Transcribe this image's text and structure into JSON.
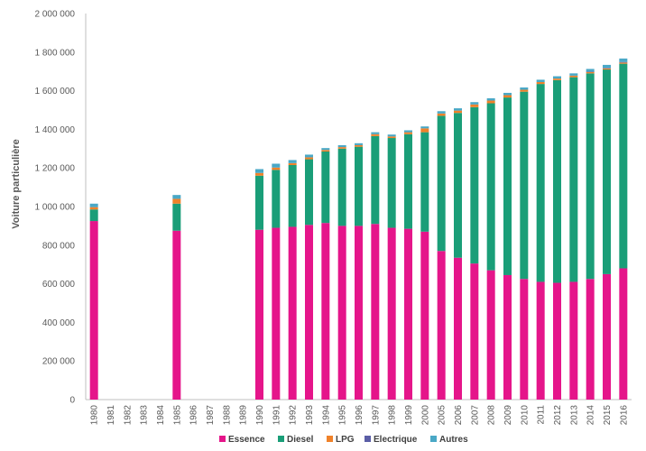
{
  "chart_data": {
    "type": "bar",
    "stacked": true,
    "ylabel": "Voiture particulière",
    "xlabel": "",
    "ylim": [
      0,
      2000000
    ],
    "y_ticks": [
      "0",
      "200 000",
      "400 000",
      "600 000",
      "800 000",
      "1 000 000",
      "1 200 000",
      "1 400 000",
      "1 600 000",
      "1 800 000",
      "2 000 000"
    ],
    "y_tick_values": [
      0,
      200000,
      400000,
      600000,
      800000,
      1000000,
      1200000,
      1400000,
      1600000,
      1800000,
      2000000
    ],
    "grid": false,
    "legend_position": "bottom",
    "categories": [
      "1980",
      "1981",
      "1982",
      "1983",
      "1984",
      "1985",
      "1986",
      "1987",
      "1988",
      "1989",
      "1990",
      "1991",
      "1992",
      "1993",
      "1994",
      "1995",
      "1996",
      "1997",
      "1998",
      "1999",
      "2000",
      "2005",
      "2006",
      "2007",
      "2008",
      "2009",
      "2010",
      "2011",
      "2012",
      "2013",
      "2014",
      "2015",
      "2016"
    ],
    "series": [
      {
        "name": "Essence",
        "color": "#e5158a",
        "values": [
          925000,
          null,
          null,
          null,
          null,
          875000,
          null,
          null,
          null,
          null,
          880000,
          890000,
          895000,
          905000,
          915000,
          900000,
          900000,
          910000,
          890000,
          885000,
          870000,
          770000,
          735000,
          705000,
          670000,
          645000,
          625000,
          610000,
          605000,
          610000,
          625000,
          650000,
          680000
        ]
      },
      {
        "name": "Diesel",
        "color": "#1a9e78",
        "values": [
          60000,
          null,
          null,
          null,
          null,
          140000,
          null,
          null,
          null,
          null,
          280000,
          300000,
          320000,
          340000,
          370000,
          400000,
          410000,
          455000,
          465000,
          490000,
          515000,
          700000,
          750000,
          810000,
          865000,
          920000,
          970000,
          1025000,
          1050000,
          1060000,
          1065000,
          1060000,
          1060000
        ]
      },
      {
        "name": "LPG",
        "color": "#f0822a",
        "values": [
          12000,
          null,
          null,
          null,
          null,
          25000,
          null,
          null,
          null,
          null,
          14000,
          12000,
          10000,
          10000,
          8000,
          8000,
          8000,
          10000,
          8000,
          10000,
          20000,
          12000,
          12000,
          14000,
          14000,
          12000,
          10000,
          10000,
          8000,
          8000,
          8000,
          6000,
          6000
        ]
      },
      {
        "name": "Electrique",
        "color": "#5b5ea6",
        "values": [
          0,
          null,
          null,
          null,
          null,
          0,
          null,
          null,
          null,
          null,
          0,
          0,
          0,
          0,
          0,
          0,
          0,
          0,
          0,
          0,
          0,
          0,
          0,
          0,
          0,
          0,
          0,
          0,
          0,
          0,
          1000,
          2000,
          3000
        ]
      },
      {
        "name": "Autres",
        "color": "#4aa8c6",
        "values": [
          18000,
          null,
          null,
          null,
          null,
          20000,
          null,
          null,
          null,
          null,
          20000,
          20000,
          16000,
          14000,
          10000,
          10000,
          10000,
          10000,
          10000,
          10000,
          10000,
          12000,
          12000,
          12000,
          12000,
          12000,
          12000,
          12000,
          12000,
          12000,
          14000,
          16000,
          18000
        ]
      }
    ]
  }
}
